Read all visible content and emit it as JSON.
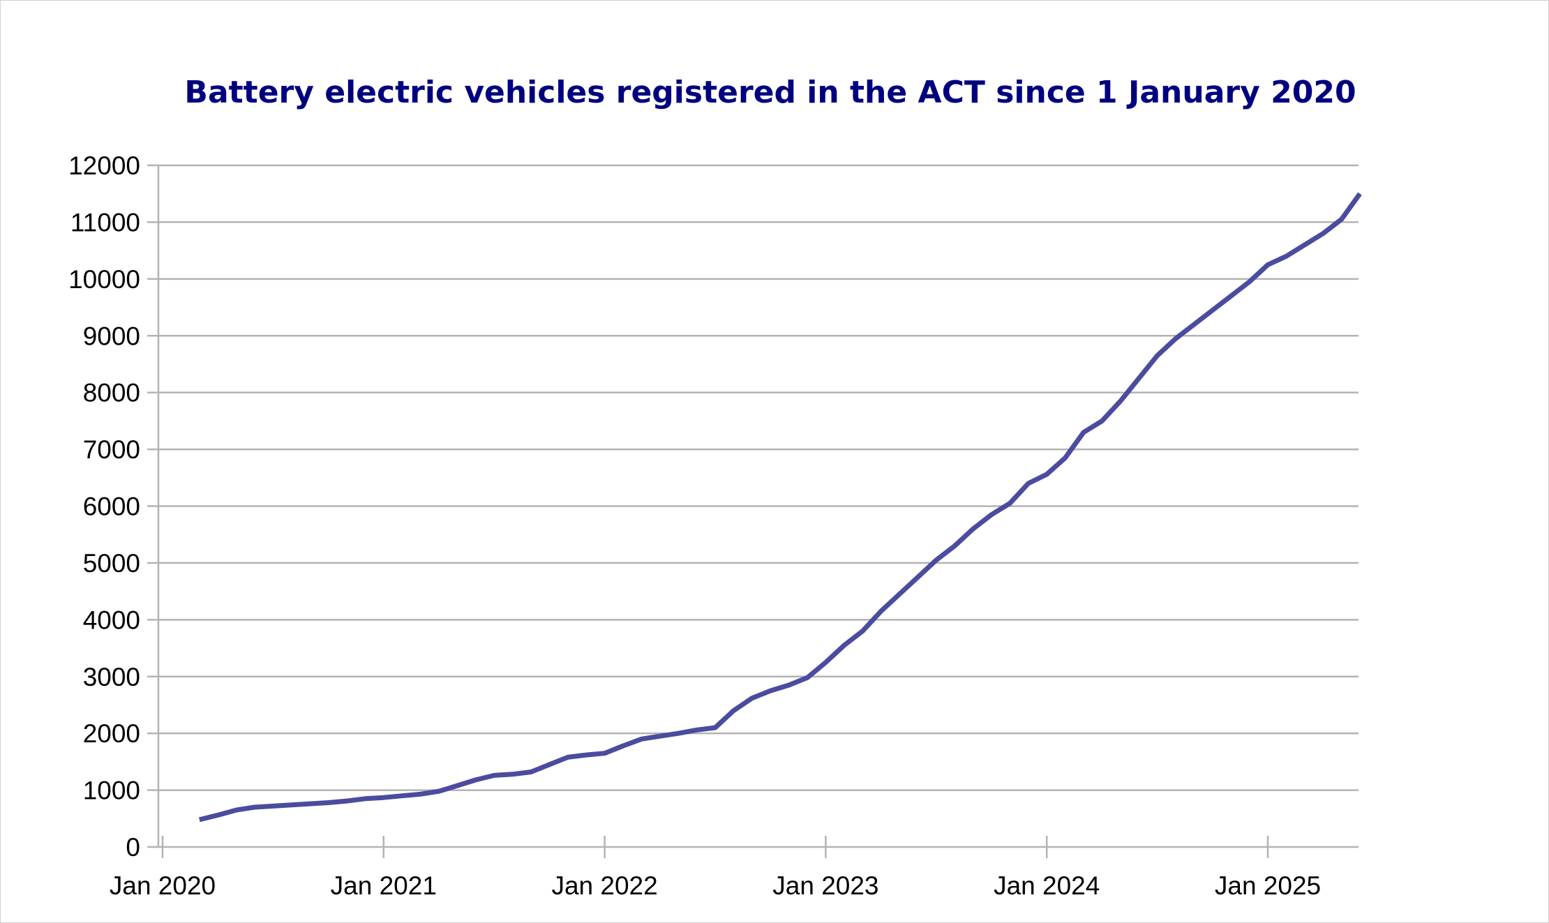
{
  "chart_data": {
    "type": "line",
    "title": "Battery electric vehicles registered in the ACT since 1 January 2020",
    "xlabel": "",
    "ylabel": "",
    "ylim": [
      0,
      12000
    ],
    "y_ticks": [
      "0",
      "1000",
      "2000",
      "3000",
      "4000",
      "5000",
      "6000",
      "7000",
      "8000",
      "9000",
      "10000",
      "11000",
      "12000"
    ],
    "x_ticks": [
      "Jan 2020",
      "Jan 2021",
      "Jan 2022",
      "Jan 2023",
      "Jan 2024",
      "Jan 2025"
    ],
    "grid": true,
    "legend": "none",
    "line_color": "#4b4ba0",
    "series": [
      {
        "x": [
          "2020-03",
          "2020-04",
          "2020-05",
          "2020-06",
          "2020-07",
          "2020-08",
          "2020-09",
          "2020-10",
          "2020-11",
          "2020-12",
          "2021-01",
          "2021-02",
          "2021-03",
          "2021-04",
          "2021-05",
          "2021-06",
          "2021-07",
          "2021-08",
          "2021-09",
          "2021-10",
          "2021-11",
          "2021-12",
          "2022-01",
          "2022-02",
          "2022-03",
          "2022-04",
          "2022-05",
          "2022-06",
          "2022-07",
          "2022-08",
          "2022-09",
          "2022-10",
          "2022-11",
          "2022-12",
          "2023-01",
          "2023-02",
          "2023-03",
          "2023-04",
          "2023-05",
          "2023-06",
          "2023-07",
          "2023-08",
          "2023-09",
          "2023-10",
          "2023-11",
          "2023-12",
          "2024-01",
          "2024-02",
          "2024-03",
          "2024-04",
          "2024-05",
          "2024-06",
          "2024-07",
          "2024-08",
          "2024-09",
          "2024-10",
          "2024-11",
          "2024-12",
          "2025-01",
          "2025-02",
          "2025-03",
          "2025-04",
          "2025-05",
          "2025-06"
        ],
        "values": [
          480,
          560,
          650,
          700,
          720,
          740,
          760,
          780,
          810,
          850,
          870,
          900,
          930,
          980,
          1080,
          1180,
          1260,
          1280,
          1320,
          1450,
          1580,
          1620,
          1650,
          1780,
          1900,
          1950,
          2000,
          2060,
          2100,
          2400,
          2620,
          2750,
          2850,
          2980,
          3250,
          3550,
          3800,
          4150,
          4450,
          4750,
          5050,
          5300,
          5600,
          5850,
          6050,
          6400,
          6560,
          6850,
          7300,
          7500,
          7850,
          8250,
          8650,
          8950,
          9200,
          9450,
          9700,
          9950,
          10250,
          10400,
          10600,
          10800,
          11050,
          11500
        ]
      }
    ]
  }
}
